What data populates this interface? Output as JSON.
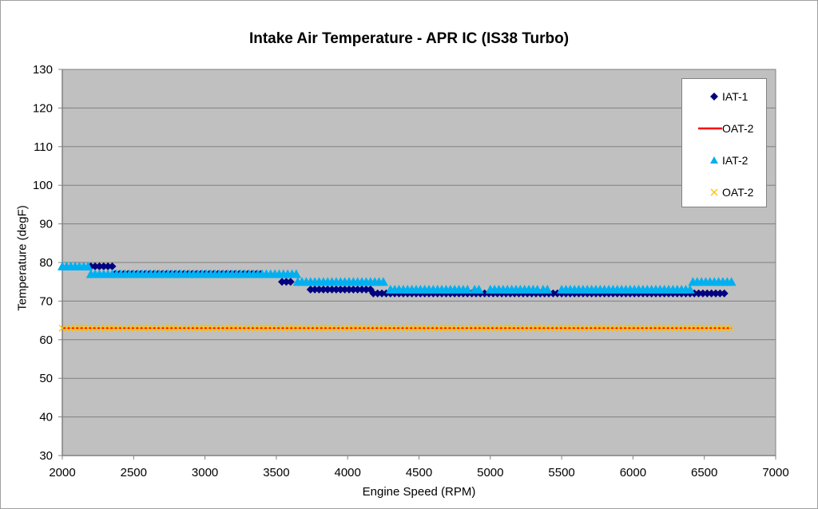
{
  "chart_data": {
    "type": "scatter",
    "title": "Intake Air Temperature - APR IC (IS38 Turbo)",
    "xlabel": "Engine Speed (RPM)",
    "ylabel": "Temperature (degF)",
    "xlim": [
      2000,
      7000
    ],
    "ylim": [
      30,
      130
    ],
    "xticks": [
      2000,
      2500,
      3000,
      3500,
      4000,
      4500,
      5000,
      5500,
      6000,
      6500,
      7000
    ],
    "yticks": [
      30,
      40,
      50,
      60,
      70,
      80,
      90,
      100,
      110,
      120,
      130
    ],
    "grid": "horizontal",
    "legend_position": "upper right",
    "plot_background": "#c0c0c0",
    "series": [
      {
        "name": "IAT-1",
        "marker": "diamond",
        "color": "#000080",
        "segments": [
          {
            "x_start": 2200,
            "x_end": 2370,
            "y": 79
          },
          {
            "x_start": 2370,
            "x_end": 3400,
            "y": 77
          },
          {
            "x_start": 3540,
            "x_end": 3600,
            "y": 75
          },
          {
            "x_start": 3740,
            "x_end": 4180,
            "y": 73
          },
          {
            "x_start": 4180,
            "x_end": 6650,
            "y": 72
          }
        ]
      },
      {
        "name": "OAT-2",
        "marker": "line",
        "color": "#ff0000",
        "segments": [
          {
            "x_start": 2000,
            "x_end": 6690,
            "y": 63
          }
        ]
      },
      {
        "name": "IAT-2",
        "marker": "triangle",
        "color": "#00b0f0",
        "segments": [
          {
            "x_start": 2000,
            "x_end": 2200,
            "y": 79
          },
          {
            "x_start": 2200,
            "x_end": 3650,
            "y": 77
          },
          {
            "x_start": 3650,
            "x_end": 4250,
            "y": 75
          },
          {
            "x_start": 4300,
            "x_end": 4690,
            "y": 73
          },
          {
            "x_start": 4720,
            "x_end": 4860,
            "y": 73
          },
          {
            "x_start": 4890,
            "x_end": 4940,
            "y": 73
          },
          {
            "x_start": 5000,
            "x_end": 5330,
            "y": 73
          },
          {
            "x_start": 5370,
            "x_end": 5420,
            "y": 73
          },
          {
            "x_start": 5500,
            "x_end": 6400,
            "y": 73
          },
          {
            "x_start": 6420,
            "x_end": 6690,
            "y": 75
          }
        ]
      },
      {
        "name": "OAT-2",
        "marker": "x",
        "color": "#ffc000",
        "segments": [
          {
            "x_start": 2000,
            "x_end": 6690,
            "y": 63
          }
        ]
      }
    ]
  },
  "legend": {
    "items": [
      {
        "label": "IAT-1"
      },
      {
        "label": "OAT-2"
      },
      {
        "label": "IAT-2"
      },
      {
        "label": "OAT-2"
      }
    ]
  }
}
